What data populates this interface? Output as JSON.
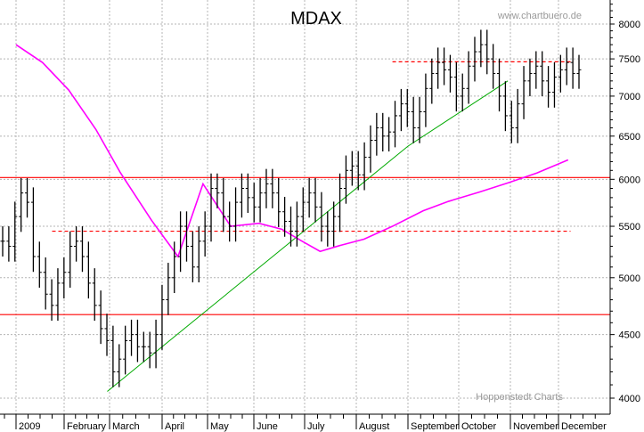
{
  "chart_data": {
    "type": "bar",
    "style": "ohlc-price-bars",
    "title": "MDAX",
    "watermark_top": "www.chartbuero.de",
    "watermark_bottom": "Hoppenstedt Charts",
    "y_scale": "log",
    "ylim": [
      3850,
      8350
    ],
    "y_ticks": [
      4000,
      4500,
      5000,
      5500,
      6000,
      6500,
      7000,
      7500,
      8000
    ],
    "x_months": [
      "2009",
      "February",
      "March",
      "April",
      "May",
      "June",
      "July",
      "August",
      "September",
      "October",
      "November",
      "December"
    ],
    "grid": true,
    "colors": {
      "price": "#000000",
      "support": "#ff0000",
      "trend": "#00aa00",
      "average": "#ff00ff",
      "grid": "#b4b4b4"
    },
    "price_closes": [
      5350,
      5300,
      5600,
      5850,
      5750,
      5200,
      5050,
      4850,
      4750,
      4950,
      5050,
      5300,
      5350,
      5200,
      4950,
      4750,
      4550,
      4450,
      4200,
      4300,
      4450,
      4500,
      4400,
      4400,
      4350,
      4500,
      4800,
      5000,
      5200,
      5500,
      5300,
      5100,
      5350,
      5500,
      5900,
      5850,
      5600,
      5500,
      5750,
      5900,
      5800,
      5700,
      5850,
      5950,
      5850,
      5650,
      5550,
      5450,
      5600,
      5750,
      5850,
      5700,
      5500,
      5450,
      5600,
      5900,
      6100,
      6150,
      6050,
      6250,
      6450,
      6600,
      6500,
      6550,
      6750,
      6900,
      6800,
      6600,
      6800,
      7100,
      7300,
      7450,
      7350,
      7250,
      7000,
      7100,
      7400,
      7600,
      7700,
      7500,
      7300,
      7000,
      6750,
      6600,
      6900,
      7200,
      7300,
      7400,
      7200,
      7050,
      7250,
      7350,
      7450,
      7300,
      7350
    ],
    "price_range": {
      "min": 4150,
      "max": 7700
    },
    "moving_average": {
      "x_month_index": [
        0,
        0.55,
        1.1,
        1.7,
        2.2,
        2.8,
        3.35,
        3.9,
        4.5,
        5.1,
        5.55,
        5.95,
        6.3,
        6.7,
        7.15,
        7.7,
        8.3,
        8.8,
        9.4,
        9.95,
        10.55,
        11.2
      ],
      "values": [
        7700,
        7450,
        7080,
        6580,
        6080,
        5560,
        5200,
        5950,
        5500,
        5530,
        5470,
        5350,
        5250,
        5310,
        5370,
        5500,
        5660,
        5760,
        5860,
        5960,
        6070,
        6220
      ]
    },
    "trend_line": {
      "x_month_index": [
        1.95,
        8.0,
        9.95
      ],
      "values": [
        4050,
        6380,
        7200
      ]
    },
    "support_lines": [
      6020,
      4670
    ],
    "resistance_lines_dashed": [
      {
        "level": 5450,
        "from_month_index": 0.75,
        "to_month_index": 11.25
      },
      {
        "level": 7460,
        "from_month_index": 7.7,
        "to_month_index": 11.25
      }
    ]
  }
}
